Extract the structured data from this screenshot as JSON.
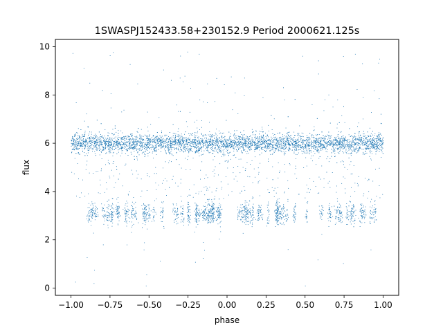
{
  "chart_data": {
    "type": "scatter",
    "title": "1SWASPJ152433.58+230152.9 Period 2000621.125s",
    "xlabel": "phase",
    "ylabel": "flux",
    "xlim": [
      -1.1,
      1.1
    ],
    "ylim": [
      -0.3,
      10.3
    ],
    "x_ticks": [
      -1.0,
      -0.75,
      -0.5,
      -0.25,
      0.0,
      0.25,
      0.5,
      0.75,
      1.0
    ],
    "x_tick_labels": [
      "−1.00",
      "−0.75",
      "−0.50",
      "−0.25",
      "0.00",
      "0.25",
      "0.50",
      "0.75",
      "1.00"
    ],
    "y_ticks": [
      0,
      2,
      4,
      6,
      8,
      10
    ],
    "y_tick_labels": [
      "0",
      "2",
      "4",
      "6",
      "8",
      "10"
    ],
    "grid": false,
    "legend": "none",
    "color": "#1f77b4",
    "series": [
      {
        "bands": [
          {
            "y_center": 6.0,
            "y_spread": 0.35,
            "x_range": [
              -1.0,
              1.0
            ],
            "density": "high"
          },
          {
            "y_center": 3.1,
            "y_spread": 0.35,
            "x_range": [
              -0.97,
              0.97
            ],
            "density": "clustered"
          }
        ],
        "outliers_example": [
          {
            "x": -0.8,
            "y": 8.2
          },
          {
            "x": 0.82,
            "y": 9.7
          },
          {
            "x": -0.18,
            "y": 9.7
          },
          {
            "x": 0.05,
            "y": 8.1
          },
          {
            "x": 0.5,
            "y": 0.1
          },
          {
            "x": -0.52,
            "y": 0.1
          }
        ]
      }
    ]
  }
}
